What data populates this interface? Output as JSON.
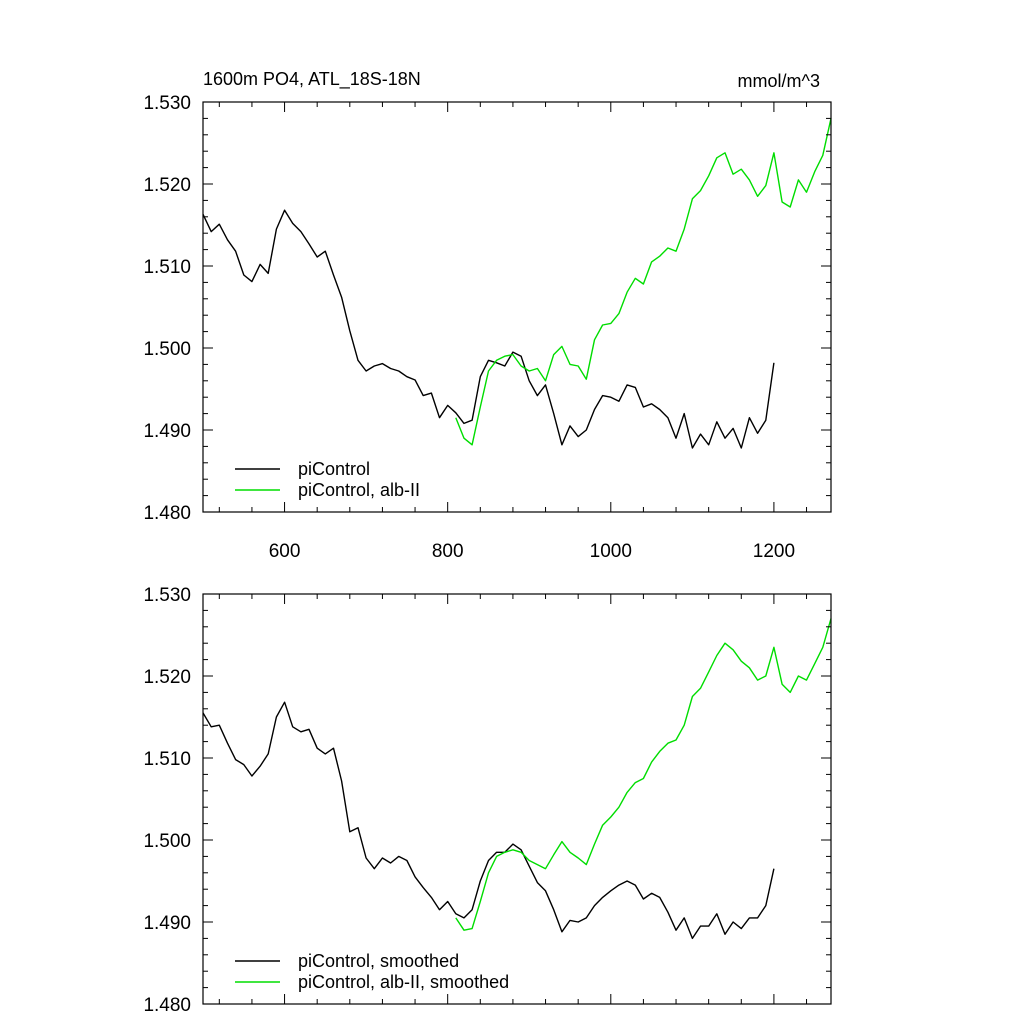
{
  "colors": {
    "black": "#000000",
    "green": "#00dd00"
  },
  "chart_data": [
    {
      "type": "line",
      "title": "1600m PO4, ATL_18S-18N",
      "units": "mmol/m^3",
      "xlabel": "",
      "ylabel": "",
      "xlim": [
        500,
        1270
      ],
      "ylim": [
        1.48,
        1.53
      ],
      "xticks": [
        {
          "value": 600,
          "label": "600"
        },
        {
          "value": 800,
          "label": "800"
        },
        {
          "value": 1000,
          "label": "1000"
        },
        {
          "value": 1200,
          "label": "1200"
        }
      ],
      "yticks": [
        {
          "value": 1.48,
          "label": "1.480"
        },
        {
          "value": 1.49,
          "label": "1.490"
        },
        {
          "value": 1.5,
          "label": "1.500"
        },
        {
          "value": 1.51,
          "label": "1.510"
        },
        {
          "value": 1.52,
          "label": "1.520"
        },
        {
          "value": 1.53,
          "label": "1.530"
        }
      ],
      "grid": false,
      "legend_position": "bottom-left",
      "series": [
        {
          "name": "piControl",
          "color": "#000000",
          "x": [
            500,
            510,
            520,
            530,
            540,
            550,
            560,
            570,
            580,
            590,
            600,
            610,
            620,
            630,
            640,
            650,
            660,
            670,
            680,
            690,
            700,
            710,
            720,
            730,
            740,
            750,
            760,
            770,
            780,
            790,
            800,
            810,
            820,
            830,
            840,
            850,
            860,
            870,
            880,
            890,
            900,
            910,
            920,
            930,
            940,
            950,
            960,
            970,
            980,
            990,
            1000,
            1010,
            1020,
            1030,
            1040,
            1050,
            1060,
            1070,
            1080,
            1090,
            1100,
            1110,
            1120,
            1130,
            1140,
            1150,
            1160,
            1170,
            1180,
            1190,
            1200
          ],
          "y": [
            1.5163,
            1.5142,
            1.5151,
            1.5132,
            1.5118,
            1.5089,
            1.5081,
            1.5102,
            1.5091,
            1.5145,
            1.5168,
            1.5152,
            1.5142,
            1.5127,
            1.5111,
            1.5118,
            1.5089,
            1.5062,
            1.5021,
            1.4985,
            1.4972,
            1.4978,
            1.4981,
            1.4975,
            1.4972,
            1.4965,
            1.4961,
            1.4942,
            1.4945,
            1.4915,
            1.493,
            1.4921,
            1.4908,
            1.4912,
            1.4965,
            1.4985,
            1.4982,
            1.4978,
            1.4995,
            1.499,
            1.496,
            1.4942,
            1.4955,
            1.492,
            1.4882,
            1.4905,
            1.4892,
            1.49,
            1.4925,
            1.4942,
            1.494,
            1.4935,
            1.4955,
            1.4952,
            1.4928,
            1.4932,
            1.4925,
            1.4915,
            1.489,
            1.492,
            1.4878,
            1.4895,
            1.4882,
            1.491,
            1.489,
            1.4902,
            1.4878,
            1.4915,
            1.4896,
            1.4912,
            1.4982
          ]
        },
        {
          "name": "piControl, alb-II",
          "color": "#00dd00",
          "x": [
            810,
            820,
            830,
            840,
            850,
            860,
            870,
            880,
            890,
            900,
            910,
            920,
            930,
            940,
            950,
            960,
            970,
            980,
            990,
            1000,
            1010,
            1020,
            1030,
            1040,
            1050,
            1060,
            1070,
            1080,
            1090,
            1100,
            1110,
            1120,
            1130,
            1140,
            1150,
            1160,
            1170,
            1180,
            1190,
            1200,
            1210,
            1220,
            1230,
            1240,
            1250,
            1260,
            1270
          ],
          "y": [
            1.4915,
            1.489,
            1.4882,
            1.4928,
            1.4972,
            1.4985,
            1.499,
            1.4992,
            1.4978,
            1.4972,
            1.4975,
            1.496,
            1.4992,
            1.5002,
            1.498,
            1.4978,
            1.4962,
            1.501,
            1.5028,
            1.503,
            1.5042,
            1.5068,
            1.5085,
            1.5078,
            1.5105,
            1.5112,
            1.5122,
            1.5118,
            1.5145,
            1.5182,
            1.5192,
            1.521,
            1.5232,
            1.5238,
            1.5212,
            1.5218,
            1.5205,
            1.5185,
            1.5198,
            1.5238,
            1.5178,
            1.5172,
            1.5205,
            1.519,
            1.5215,
            1.5235,
            1.528
          ]
        }
      ]
    },
    {
      "type": "line",
      "title": "",
      "xlabel": "",
      "ylabel": "",
      "xlim": [
        500,
        1270
      ],
      "ylim": [
        1.48,
        1.53
      ],
      "xticks": [
        {
          "value": 600,
          "label": ""
        },
        {
          "value": 800,
          "label": ""
        },
        {
          "value": 1000,
          "label": ""
        },
        {
          "value": 1200,
          "label": ""
        }
      ],
      "yticks": [
        {
          "value": 1.48,
          "label": "1.480"
        },
        {
          "value": 1.49,
          "label": "1.490"
        },
        {
          "value": 1.5,
          "label": "1.500"
        },
        {
          "value": 1.51,
          "label": "1.510"
        },
        {
          "value": 1.52,
          "label": "1.520"
        },
        {
          "value": 1.53,
          "label": "1.530"
        }
      ],
      "grid": false,
      "legend_position": "bottom-left",
      "series": [
        {
          "name": "piControl, smoothed",
          "color": "#000000",
          "x": [
            500,
            510,
            520,
            530,
            540,
            550,
            560,
            570,
            580,
            590,
            600,
            610,
            620,
            630,
            640,
            650,
            660,
            670,
            680,
            690,
            700,
            710,
            720,
            730,
            740,
            750,
            760,
            770,
            780,
            790,
            800,
            810,
            820,
            830,
            840,
            850,
            860,
            870,
            880,
            890,
            900,
            910,
            920,
            930,
            940,
            950,
            960,
            970,
            980,
            990,
            1000,
            1010,
            1020,
            1030,
            1040,
            1050,
            1060,
            1070,
            1080,
            1090,
            1100,
            1110,
            1120,
            1130,
            1140,
            1150,
            1160,
            1170,
            1180,
            1190,
            1200
          ],
          "y": [
            1.5155,
            1.5138,
            1.514,
            1.5118,
            1.5098,
            1.5092,
            1.5078,
            1.509,
            1.5105,
            1.515,
            1.5168,
            1.5138,
            1.5132,
            1.5135,
            1.5112,
            1.5105,
            1.5112,
            1.5072,
            1.501,
            1.5015,
            1.4978,
            1.4965,
            1.4978,
            1.4972,
            1.498,
            1.4975,
            1.4955,
            1.4942,
            1.493,
            1.4915,
            1.4925,
            1.491,
            1.4905,
            1.4915,
            1.495,
            1.4975,
            1.4985,
            1.4985,
            1.4995,
            1.4988,
            1.4968,
            1.4948,
            1.4938,
            1.4915,
            1.4888,
            1.4902,
            1.49,
            1.4905,
            1.492,
            1.493,
            1.4938,
            1.4945,
            1.495,
            1.4945,
            1.4928,
            1.4935,
            1.493,
            1.4912,
            1.489,
            1.4905,
            1.488,
            1.4895,
            1.4895,
            1.491,
            1.4885,
            1.49,
            1.4892,
            1.4905,
            1.4905,
            1.492,
            1.4965
          ]
        },
        {
          "name": "piControl, alb-II, smoothed",
          "color": "#00dd00",
          "x": [
            810,
            820,
            830,
            840,
            850,
            860,
            870,
            880,
            890,
            900,
            910,
            920,
            930,
            940,
            950,
            960,
            970,
            980,
            990,
            1000,
            1010,
            1020,
            1030,
            1040,
            1050,
            1060,
            1070,
            1080,
            1090,
            1100,
            1110,
            1120,
            1130,
            1140,
            1150,
            1160,
            1170,
            1180,
            1190,
            1200,
            1210,
            1220,
            1230,
            1240,
            1250,
            1260,
            1270
          ],
          "y": [
            1.4905,
            1.489,
            1.4892,
            1.4925,
            1.496,
            1.498,
            1.4985,
            1.4988,
            1.4985,
            1.4975,
            1.497,
            1.4965,
            1.4982,
            1.4998,
            1.4985,
            1.4978,
            1.497,
            1.4995,
            1.5018,
            1.5028,
            1.504,
            1.5058,
            1.507,
            1.5075,
            1.5095,
            1.5108,
            1.5118,
            1.5122,
            1.514,
            1.5175,
            1.5185,
            1.5205,
            1.5225,
            1.524,
            1.5232,
            1.5218,
            1.521,
            1.5195,
            1.52,
            1.5235,
            1.519,
            1.518,
            1.52,
            1.5195,
            1.5215,
            1.5235,
            1.527
          ]
        }
      ]
    }
  ]
}
